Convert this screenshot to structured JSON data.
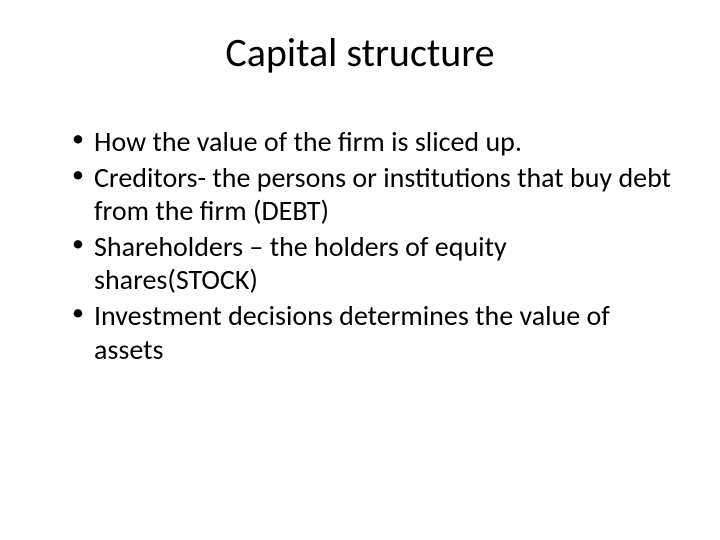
{
  "slide": {
    "title": "Capital structure",
    "bullets": [
      "How the value of the firm is sliced up.",
      "Creditors- the persons or institutions that buy debt from the firm (DEBT)",
      "Shareholders – the holders of equity shares(STOCK)",
      "Investment decisions determines the value of assets"
    ],
    "background_color": "#ffffff",
    "text_color": "#000000",
    "title_fontsize": 40,
    "body_fontsize": 28
  }
}
